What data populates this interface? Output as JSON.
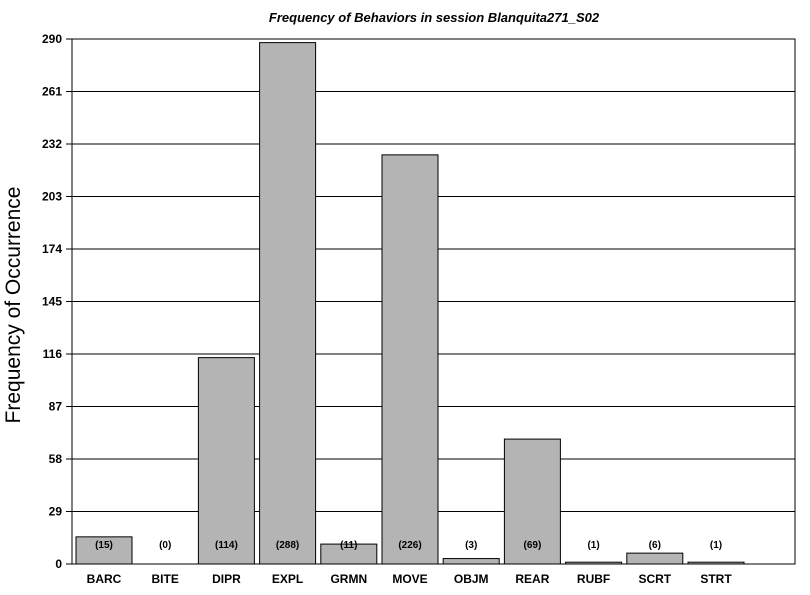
{
  "chart_data": {
    "type": "bar",
    "title": "Frequency of Behaviors in session Blanquita271_S02",
    "xlabel": "",
    "ylabel": "Frequency of Occurrence",
    "ylim": [
      0,
      290
    ],
    "yticks": [
      0,
      29,
      58,
      87,
      116,
      145,
      174,
      203,
      232,
      261,
      290
    ],
    "grid": true,
    "categories": [
      "BARC",
      "BITE",
      "DIPR",
      "EXPL",
      "GRMN",
      "MOVE",
      "OBJM",
      "REAR",
      "RUBF",
      "SCRT",
      "STRT"
    ],
    "values": [
      15,
      0,
      114,
      288,
      11,
      226,
      3,
      69,
      1,
      6,
      1
    ],
    "data_labels": [
      "(15)",
      "(0)",
      "(114)",
      "(288)",
      "(11)",
      "(226)",
      "(3)",
      "(69)",
      "(1)",
      "(6)",
      "(1)"
    ],
    "bar_color": "#b4b4b4"
  }
}
